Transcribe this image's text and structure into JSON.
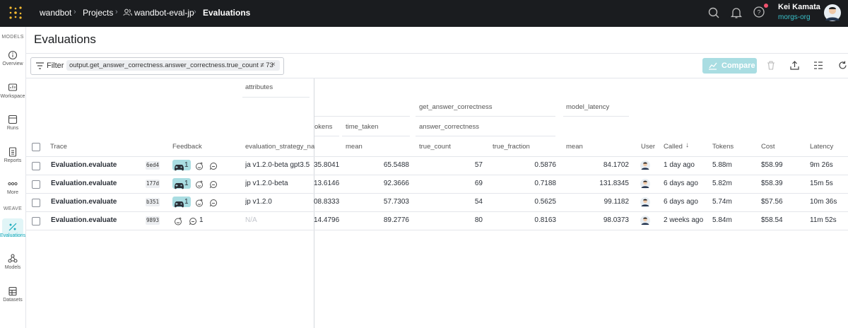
{
  "topbar": {
    "breadcrumbs": [
      "wandbot",
      "Projects",
      "wandbot-eval-jp",
      "Evaluations"
    ],
    "user": {
      "name": "Kei Kamata",
      "org": "morgs-org"
    }
  },
  "sidebar": {
    "sections": [
      {
        "label": "MODELS",
        "items": [
          "Overview",
          "Workspace",
          "Runs",
          "Reports",
          "More"
        ]
      },
      {
        "label": "WEAVE",
        "items": [
          "Evaluations",
          "Models",
          "Datasets"
        ]
      }
    ],
    "active": "Evaluations"
  },
  "page": {
    "title": "Evaluations",
    "filter": {
      "label": "Filter",
      "chip": "output.get_answer_correctness.answer_correctness.true_count ≠ 73"
    },
    "compare": "Compare"
  },
  "table": {
    "groups": {
      "attributes": "attributes",
      "get_answer_correctness": "get_answer_correctness",
      "answer_correctness": "answer_correctness",
      "model_latency": "model_latency",
      "tokens": "okens",
      "time_taken": "time_taken"
    },
    "columns": {
      "trace": "Trace",
      "feedback": "Feedback",
      "strategy": "evaluation_strategy_na",
      "time_mean": "mean",
      "true_count": "true_count",
      "true_fraction": "true_fraction",
      "latency_mean": "mean",
      "user": "User",
      "called": "Called",
      "tokens": "Tokens",
      "cost": "Cost",
      "latency": "Latency"
    },
    "rows": [
      {
        "trace": "Evaluation.evaluate",
        "id": "6ed4",
        "reaction_count": 1,
        "strategy": "ja v1.2.0-beta gpt3.5",
        "tokens_mean": "35.8041",
        "time_mean": 65.5488,
        "true_count": 57,
        "true_fraction": 0.5876,
        "latency_mean": 84.1702,
        "called": "1 day ago",
        "tokens": "5.88m",
        "cost": "$58.99",
        "latency": "9m 26s"
      },
      {
        "trace": "Evaluation.evaluate",
        "id": "177d",
        "reaction_count": 1,
        "strategy": "jp v1.2.0-beta",
        "tokens_mean": "13.6146",
        "time_mean": 92.3666,
        "true_count": 69,
        "true_fraction": 0.7188,
        "latency_mean": 131.8345,
        "called": "6 days ago",
        "tokens": "5.82m",
        "cost": "$58.39",
        "latency": "15m 5s"
      },
      {
        "trace": "Evaluation.evaluate",
        "id": "b351",
        "reaction_count": 1,
        "strategy": "jp v1.2.0",
        "tokens_mean": "08.8333",
        "time_mean": 57.7303,
        "true_count": 54,
        "true_fraction": 0.5625,
        "latency_mean": 99.1182,
        "called": "6 days ago",
        "tokens": "5.74m",
        "cost": "$57.56",
        "latency": "10m 36s"
      },
      {
        "trace": "Evaluation.evaluate",
        "id": "9893",
        "comment_count": 1,
        "strategy": "N/A",
        "tokens_mean": "14.4796",
        "time_mean": 89.2776,
        "true_count": 80,
        "true_fraction": 0.8163,
        "latency_mean": 98.0373,
        "called": "2 weeks ago",
        "tokens": "5.84m",
        "cost": "$58.54",
        "latency": "11m 52s"
      }
    ]
  }
}
